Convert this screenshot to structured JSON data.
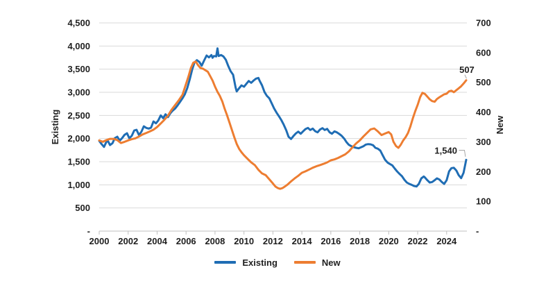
{
  "chart_data": {
    "type": "line",
    "title": "",
    "grid": true,
    "legend_position": "bottom",
    "colors": {
      "existing_line": "#1f6db4",
      "new_line": "#ed7d31",
      "gridline": "#d9d9d9",
      "axis_line": "#bfbfbf",
      "leader_line": "#a6a6a6",
      "text": "#1f1f1f"
    },
    "left_axis": {
      "label": "Existing",
      "min": 0,
      "max": 4500,
      "step": 500,
      "tick_labels": [
        "4,500",
        "4,000",
        "3,500",
        "3,000",
        "2,500",
        "2,000",
        "1,500",
        "1,000",
        "500",
        "-"
      ],
      "tick_values": [
        4500,
        4000,
        3500,
        3000,
        2500,
        2000,
        1500,
        1000,
        500,
        0
      ]
    },
    "right_axis": {
      "label": "New",
      "min": 0,
      "max": 700,
      "step": 100,
      "tick_labels": [
        "700",
        "600",
        "500",
        "400",
        "300",
        "200",
        "100",
        "-"
      ],
      "tick_values": [
        700,
        600,
        500,
        400,
        300,
        200,
        100,
        0
      ]
    },
    "x_axis": {
      "min": 2000,
      "max": 2025.4,
      "tick_labels": [
        "2000",
        "2002",
        "2004",
        "2006",
        "2008",
        "2010",
        "2012",
        "2014",
        "2016",
        "2018",
        "2020",
        "2022",
        "2024"
      ],
      "tick_values": [
        2000,
        2002,
        2004,
        2006,
        2008,
        2010,
        2012,
        2014,
        2016,
        2018,
        2020,
        2022,
        2024
      ]
    },
    "legend": [
      {
        "label": "Existing",
        "color": "#1f6db4"
      },
      {
        "label": "New",
        "color": "#ed7d31"
      }
    ],
    "series": [
      {
        "name": "Existing",
        "axis": "left",
        "color": "#1f6db4",
        "end_label": "1,540",
        "points": [
          [
            2000.0,
            1950
          ],
          [
            2000.17,
            1880
          ],
          [
            2000.33,
            1820
          ],
          [
            2000.5,
            1930
          ],
          [
            2000.58,
            1960
          ],
          [
            2000.75,
            1860
          ],
          [
            2000.92,
            1900
          ],
          [
            2001.08,
            2010
          ],
          [
            2001.25,
            2040
          ],
          [
            2001.42,
            1955
          ],
          [
            2001.58,
            2010
          ],
          [
            2001.75,
            2080
          ],
          [
            2001.92,
            2115
          ],
          [
            2002.08,
            2005
          ],
          [
            2002.25,
            2060
          ],
          [
            2002.42,
            2175
          ],
          [
            2002.58,
            2190
          ],
          [
            2002.75,
            2075
          ],
          [
            2002.92,
            2150
          ],
          [
            2003.08,
            2265
          ],
          [
            2003.25,
            2230
          ],
          [
            2003.42,
            2215
          ],
          [
            2003.58,
            2235
          ],
          [
            2003.75,
            2370
          ],
          [
            2003.92,
            2330
          ],
          [
            2004.08,
            2390
          ],
          [
            2004.25,
            2500
          ],
          [
            2004.42,
            2440
          ],
          [
            2004.58,
            2525
          ],
          [
            2004.75,
            2465
          ],
          [
            2004.92,
            2550
          ],
          [
            2005.08,
            2605
          ],
          [
            2005.25,
            2650
          ],
          [
            2005.42,
            2720
          ],
          [
            2005.58,
            2790
          ],
          [
            2005.75,
            2870
          ],
          [
            2005.92,
            2960
          ],
          [
            2006.08,
            3090
          ],
          [
            2006.25,
            3275
          ],
          [
            2006.42,
            3490
          ],
          [
            2006.58,
            3645
          ],
          [
            2006.75,
            3695
          ],
          [
            2006.92,
            3655
          ],
          [
            2007.08,
            3575
          ],
          [
            2007.25,
            3690
          ],
          [
            2007.42,
            3795
          ],
          [
            2007.58,
            3755
          ],
          [
            2007.75,
            3805
          ],
          [
            2007.83,
            3745
          ],
          [
            2007.92,
            3785
          ],
          [
            2008.08,
            3775
          ],
          [
            2008.17,
            3950
          ],
          [
            2008.25,
            3785
          ],
          [
            2008.42,
            3805
          ],
          [
            2008.58,
            3775
          ],
          [
            2008.75,
            3700
          ],
          [
            2008.92,
            3565
          ],
          [
            2009.08,
            3455
          ],
          [
            2009.25,
            3380
          ],
          [
            2009.42,
            3105
          ],
          [
            2009.5,
            3020
          ],
          [
            2009.67,
            3090
          ],
          [
            2009.83,
            3150
          ],
          [
            2010.0,
            3120
          ],
          [
            2010.17,
            3185
          ],
          [
            2010.33,
            3245
          ],
          [
            2010.5,
            3205
          ],
          [
            2010.67,
            3255
          ],
          [
            2010.83,
            3295
          ],
          [
            2011.0,
            3310
          ],
          [
            2011.08,
            3250
          ],
          [
            2011.25,
            3150
          ],
          [
            2011.42,
            3005
          ],
          [
            2011.58,
            2925
          ],
          [
            2011.75,
            2870
          ],
          [
            2011.92,
            2760
          ],
          [
            2012.08,
            2650
          ],
          [
            2012.25,
            2560
          ],
          [
            2012.42,
            2480
          ],
          [
            2012.58,
            2400
          ],
          [
            2012.75,
            2300
          ],
          [
            2012.92,
            2180
          ],
          [
            2013.08,
            2040
          ],
          [
            2013.25,
            1990
          ],
          [
            2013.42,
            2055
          ],
          [
            2013.58,
            2110
          ],
          [
            2013.75,
            2150
          ],
          [
            2013.92,
            2105
          ],
          [
            2014.08,
            2155
          ],
          [
            2014.25,
            2205
          ],
          [
            2014.42,
            2230
          ],
          [
            2014.58,
            2185
          ],
          [
            2014.75,
            2215
          ],
          [
            2014.92,
            2160
          ],
          [
            2015.08,
            2135
          ],
          [
            2015.25,
            2195
          ],
          [
            2015.42,
            2225
          ],
          [
            2015.58,
            2185
          ],
          [
            2015.75,
            2210
          ],
          [
            2015.92,
            2135
          ],
          [
            2016.08,
            2105
          ],
          [
            2016.25,
            2155
          ],
          [
            2016.42,
            2135
          ],
          [
            2016.58,
            2100
          ],
          [
            2016.75,
            2060
          ],
          [
            2016.92,
            2000
          ],
          [
            2017.08,
            1925
          ],
          [
            2017.25,
            1865
          ],
          [
            2017.42,
            1835
          ],
          [
            2017.58,
            1815
          ],
          [
            2017.75,
            1800
          ],
          [
            2017.92,
            1790
          ],
          [
            2018.08,
            1810
          ],
          [
            2018.25,
            1835
          ],
          [
            2018.42,
            1870
          ],
          [
            2018.58,
            1880
          ],
          [
            2018.75,
            1875
          ],
          [
            2018.92,
            1855
          ],
          [
            2019.08,
            1800
          ],
          [
            2019.25,
            1780
          ],
          [
            2019.42,
            1740
          ],
          [
            2019.58,
            1640
          ],
          [
            2019.75,
            1540
          ],
          [
            2019.92,
            1480
          ],
          [
            2020.08,
            1450
          ],
          [
            2020.25,
            1420
          ],
          [
            2020.42,
            1350
          ],
          [
            2020.58,
            1290
          ],
          [
            2020.75,
            1235
          ],
          [
            2020.92,
            1185
          ],
          [
            2021.08,
            1110
          ],
          [
            2021.25,
            1050
          ],
          [
            2021.42,
            1020
          ],
          [
            2021.58,
            1000
          ],
          [
            2021.75,
            975
          ],
          [
            2021.92,
            965
          ],
          [
            2022.08,
            1020
          ],
          [
            2022.25,
            1140
          ],
          [
            2022.42,
            1180
          ],
          [
            2022.5,
            1160
          ],
          [
            2022.67,
            1100
          ],
          [
            2022.83,
            1050
          ],
          [
            2023.0,
            1060
          ],
          [
            2023.17,
            1100
          ],
          [
            2023.33,
            1140
          ],
          [
            2023.5,
            1115
          ],
          [
            2023.67,
            1060
          ],
          [
            2023.83,
            1020
          ],
          [
            2024.0,
            1100
          ],
          [
            2024.17,
            1290
          ],
          [
            2024.33,
            1360
          ],
          [
            2024.5,
            1370
          ],
          [
            2024.67,
            1310
          ],
          [
            2024.83,
            1210
          ],
          [
            2025.0,
            1145
          ],
          [
            2025.17,
            1260
          ],
          [
            2025.35,
            1540
          ]
        ]
      },
      {
        "name": "New",
        "axis": "right",
        "color": "#ed7d31",
        "end_label": "507",
        "points": [
          [
            2000.0,
            305
          ],
          [
            2000.25,
            300
          ],
          [
            2000.5,
            306
          ],
          [
            2000.75,
            310
          ],
          [
            2001.0,
            310
          ],
          [
            2001.25,
            306
          ],
          [
            2001.5,
            296
          ],
          [
            2001.75,
            300
          ],
          [
            2002.0,
            305
          ],
          [
            2002.25,
            309
          ],
          [
            2002.5,
            312
          ],
          [
            2002.75,
            318
          ],
          [
            2003.0,
            325
          ],
          [
            2003.25,
            330
          ],
          [
            2003.5,
            335
          ],
          [
            2003.75,
            341
          ],
          [
            2004.0,
            350
          ],
          [
            2004.25,
            362
          ],
          [
            2004.5,
            374
          ],
          [
            2004.75,
            388
          ],
          [
            2005.0,
            408
          ],
          [
            2005.25,
            424
          ],
          [
            2005.5,
            440
          ],
          [
            2005.75,
            458
          ],
          [
            2006.0,
            495
          ],
          [
            2006.17,
            520
          ],
          [
            2006.33,
            548
          ],
          [
            2006.5,
            566
          ],
          [
            2006.67,
            570
          ],
          [
            2006.83,
            558
          ],
          [
            2007.0,
            548
          ],
          [
            2007.17,
            546
          ],
          [
            2007.33,
            541
          ],
          [
            2007.5,
            536
          ],
          [
            2007.67,
            521
          ],
          [
            2007.83,
            506
          ],
          [
            2008.0,
            486
          ],
          [
            2008.17,
            468
          ],
          [
            2008.33,
            455
          ],
          [
            2008.5,
            436
          ],
          [
            2008.67,
            411
          ],
          [
            2008.83,
            390
          ],
          [
            2009.0,
            365
          ],
          [
            2009.17,
            340
          ],
          [
            2009.33,
            316
          ],
          [
            2009.5,
            293
          ],
          [
            2009.67,
            276
          ],
          [
            2009.83,
            265
          ],
          [
            2010.0,
            255
          ],
          [
            2010.25,
            243
          ],
          [
            2010.5,
            231
          ],
          [
            2010.75,
            222
          ],
          [
            2011.0,
            206
          ],
          [
            2011.25,
            194
          ],
          [
            2011.5,
            188
          ],
          [
            2011.75,
            174
          ],
          [
            2012.0,
            160
          ],
          [
            2012.17,
            150
          ],
          [
            2012.33,
            145
          ],
          [
            2012.5,
            142
          ],
          [
            2012.67,
            145
          ],
          [
            2012.83,
            150
          ],
          [
            2013.0,
            156
          ],
          [
            2013.25,
            167
          ],
          [
            2013.5,
            177
          ],
          [
            2013.75,
            186
          ],
          [
            2014.0,
            196
          ],
          [
            2014.25,
            201
          ],
          [
            2014.5,
            207
          ],
          [
            2014.75,
            213
          ],
          [
            2015.0,
            218
          ],
          [
            2015.25,
            222
          ],
          [
            2015.5,
            226
          ],
          [
            2015.75,
            231
          ],
          [
            2016.0,
            238
          ],
          [
            2016.25,
            241
          ],
          [
            2016.5,
            246
          ],
          [
            2016.75,
            252
          ],
          [
            2017.0,
            258
          ],
          [
            2017.25,
            268
          ],
          [
            2017.5,
            282
          ],
          [
            2017.75,
            295
          ],
          [
            2018.0,
            305
          ],
          [
            2018.25,
            318
          ],
          [
            2018.5,
            330
          ],
          [
            2018.75,
            342
          ],
          [
            2019.0,
            345
          ],
          [
            2019.25,
            335
          ],
          [
            2019.5,
            323
          ],
          [
            2019.75,
            328
          ],
          [
            2020.0,
            333
          ],
          [
            2020.17,
            325
          ],
          [
            2020.33,
            300
          ],
          [
            2020.5,
            286
          ],
          [
            2020.67,
            280
          ],
          [
            2020.83,
            290
          ],
          [
            2021.0,
            305
          ],
          [
            2021.17,
            316
          ],
          [
            2021.33,
            330
          ],
          [
            2021.5,
            352
          ],
          [
            2021.67,
            380
          ],
          [
            2021.83,
            403
          ],
          [
            2022.0,
            425
          ],
          [
            2022.17,
            450
          ],
          [
            2022.33,
            465
          ],
          [
            2022.5,
            461
          ],
          [
            2022.67,
            452
          ],
          [
            2022.83,
            443
          ],
          [
            2023.0,
            437
          ],
          [
            2023.17,
            435
          ],
          [
            2023.33,
            444
          ],
          [
            2023.5,
            450
          ],
          [
            2023.67,
            455
          ],
          [
            2023.83,
            460
          ],
          [
            2024.0,
            462
          ],
          [
            2024.17,
            470
          ],
          [
            2024.33,
            472
          ],
          [
            2024.5,
            467
          ],
          [
            2024.67,
            474
          ],
          [
            2024.83,
            480
          ],
          [
            2025.0,
            487
          ],
          [
            2025.17,
            496
          ],
          [
            2025.35,
            507
          ]
        ]
      }
    ]
  }
}
